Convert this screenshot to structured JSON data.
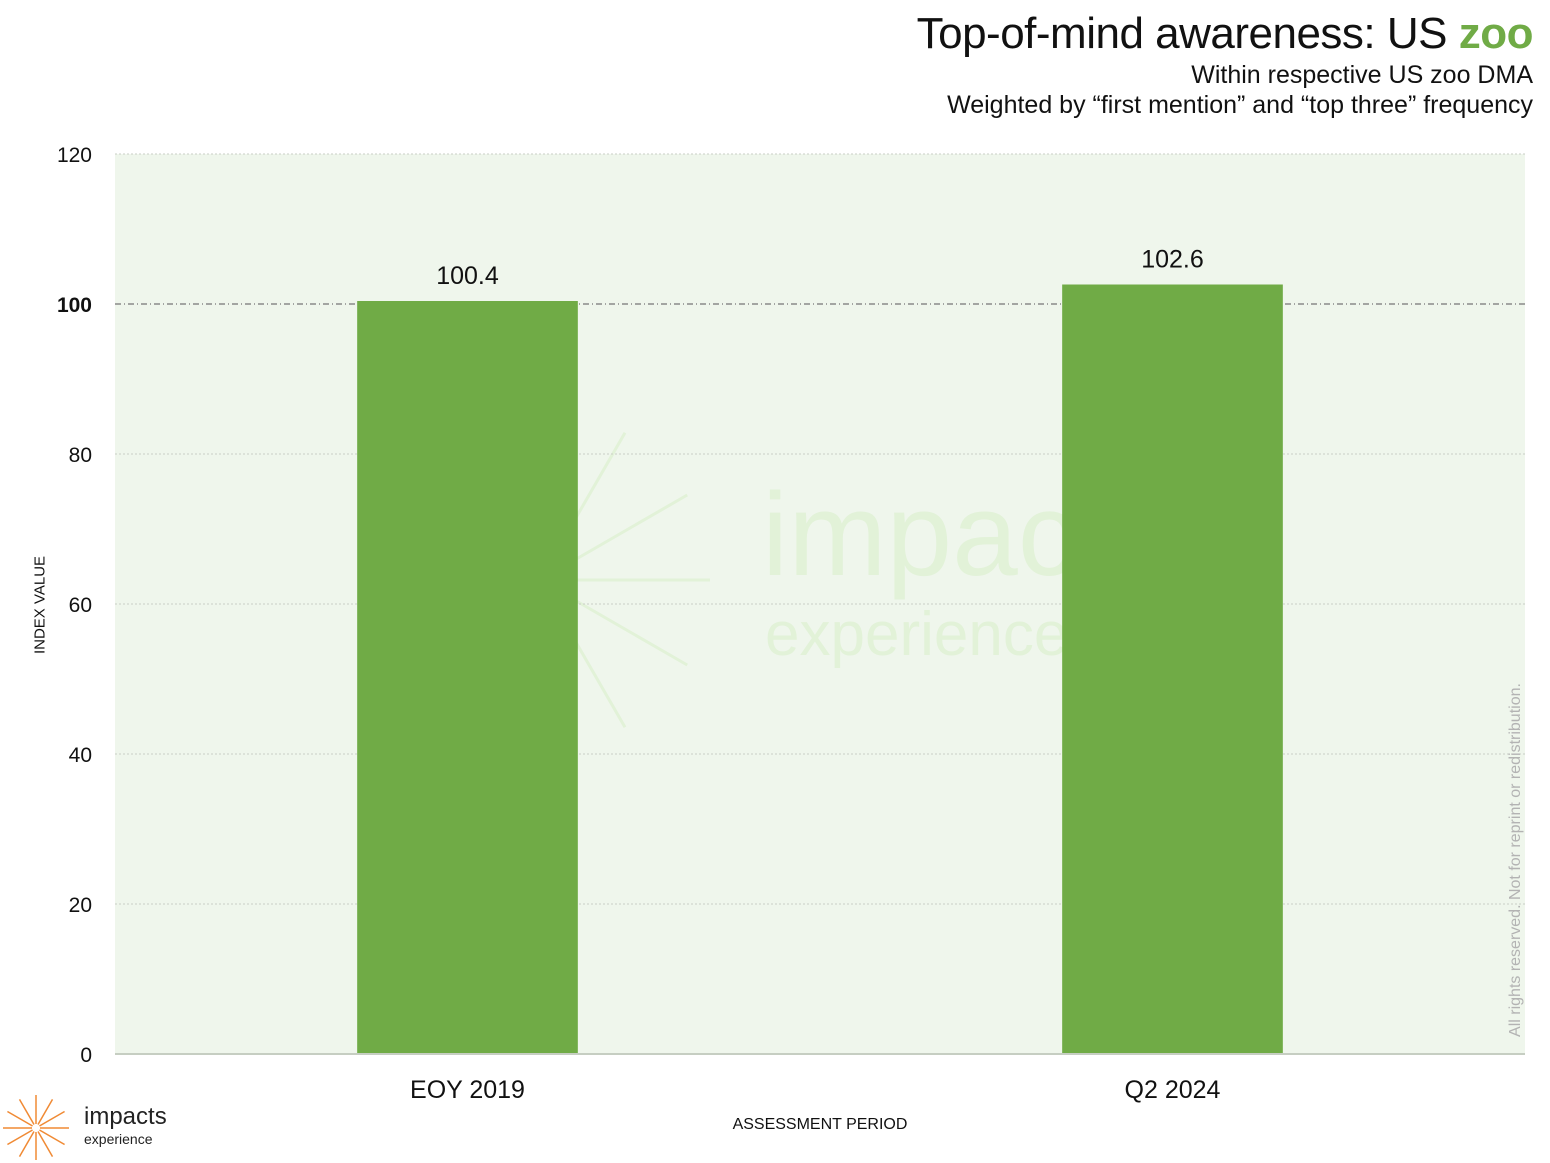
{
  "header": {
    "title_main": "Top-of-mind awareness: US",
    "title_accent": "zoo",
    "subtitle_line1": "Within respective US zoo DMA",
    "subtitle_line2": "Weighted by “first mention” and “top three” frequency"
  },
  "chart_data": {
    "type": "bar",
    "categories": [
      "EOY 2019",
      "Q2 2024"
    ],
    "values": [
      100.4,
      102.6
    ],
    "data_labels": [
      "100.4",
      "102.6"
    ],
    "xlabel": "ASSESSMENT PERIOD",
    "ylabel": "INDEX VALUE",
    "ylim": [
      0,
      120
    ],
    "yticks": [
      0,
      20,
      40,
      60,
      80,
      100,
      120
    ],
    "reference_line": 100,
    "grid": true,
    "legend": "none",
    "colors": {
      "bar": "#70ab46",
      "plot_bg": "#eff6ec",
      "watermark": "#e2f2d8"
    }
  },
  "watermark": {
    "line1": "impacts",
    "line2": "experience"
  },
  "footer": {
    "rights": "All rights reserved. Not for reprint or redistribution.",
    "logo_name": "impacts",
    "logo_sub": "experience",
    "logo_color": "#f08a34"
  }
}
